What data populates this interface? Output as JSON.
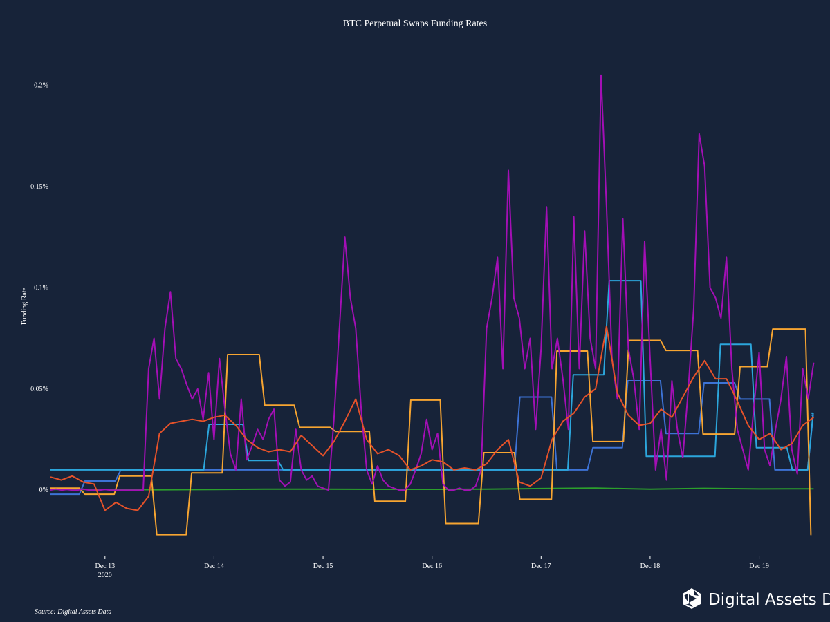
{
  "chart_data": {
    "type": "line",
    "title": "BTC Perpetual Swaps Funding Rates",
    "xlabel": "",
    "ylabel": "Funding Rate",
    "source": "Source: Digital Assets Data",
    "logo_text": "Digital Assets Data",
    "x_unit": "day of December 2020",
    "xlim": [
      12.5,
      19.65
    ],
    "ylim": [
      -0.031,
      0.208
    ],
    "grid": false,
    "legend": "none",
    "x_ticks": [
      {
        "value": 13,
        "label": "Dec 13",
        "sublabel": "2020"
      },
      {
        "value": 14,
        "label": "Dec 14"
      },
      {
        "value": 15,
        "label": "Dec 15"
      },
      {
        "value": 16,
        "label": "Dec 16"
      },
      {
        "value": 17,
        "label": "Dec 17"
      },
      {
        "value": 18,
        "label": "Dec 18"
      },
      {
        "value": 19,
        "label": "Dec 19"
      }
    ],
    "y_ticks": [
      {
        "value": 0,
        "label": "0%"
      },
      {
        "value": 0.05,
        "label": "0.05%"
      },
      {
        "value": 0.1,
        "label": "0.1%"
      },
      {
        "value": 0.15,
        "label": "0.15%"
      },
      {
        "value": 0.2,
        "label": "0.2%"
      }
    ],
    "series": [
      {
        "name": "green-series",
        "color": "#2ca02c",
        "kind": "sampled",
        "x_start": 12.5,
        "x_step": 0.5,
        "values": [
          0.0003,
          0.0003,
          0.0002,
          0.0003,
          0.0005,
          0.0005,
          0.0004,
          0.0004,
          0.0005,
          0.0008,
          0.001,
          0.0005,
          0.0009,
          0.0006,
          0.0007
        ]
      },
      {
        "name": "blue-series",
        "color": "#3d73d6",
        "kind": "step",
        "x_end": 19.48,
        "steps": [
          [
            12.5,
            -0.002
          ],
          [
            12.79,
            0.0045
          ],
          [
            13.12,
            0.01
          ],
          [
            16.78,
            0.046
          ],
          [
            17.12,
            0.01
          ],
          [
            17.45,
            0.021
          ],
          [
            17.77,
            0.054
          ],
          [
            18.12,
            0.028
          ],
          [
            18.47,
            0.053
          ],
          [
            18.8,
            0.045
          ],
          [
            19.12,
            0.01
          ],
          [
            19.47,
            0.037
          ]
        ]
      },
      {
        "name": "sky-blue-series",
        "color": "#2ca6dc",
        "kind": "step",
        "x_end": 19.48,
        "steps": [
          [
            12.5,
            0.01
          ],
          [
            13.93,
            0.0325
          ],
          [
            14.29,
            0.0147
          ],
          [
            14.61,
            0.01
          ],
          [
            17.27,
            0.057
          ],
          [
            17.6,
            0.1035
          ],
          [
            17.94,
            0.0167
          ],
          [
            18.62,
            0.072
          ],
          [
            18.95,
            0.021
          ],
          [
            19.28,
            0.01
          ],
          [
            19.47,
            0.038
          ]
        ]
      },
      {
        "name": "orange-series",
        "color": "#f7a531",
        "kind": "step",
        "x_end": 19.48,
        "steps": [
          [
            12.5,
            0.001
          ],
          [
            12.79,
            -0.002
          ],
          [
            13.11,
            0.007
          ],
          [
            13.45,
            -0.022
          ],
          [
            13.77,
            0.0085
          ],
          [
            14.1,
            0.067
          ],
          [
            14.44,
            0.042
          ],
          [
            14.76,
            0.031
          ],
          [
            15.09,
            0.029
          ],
          [
            15.45,
            -0.0055
          ],
          [
            15.78,
            0.0445
          ],
          [
            16.1,
            -0.0165
          ],
          [
            16.45,
            0.0185
          ],
          [
            16.78,
            -0.0045
          ],
          [
            17.12,
            0.0687
          ],
          [
            17.45,
            0.024
          ],
          [
            17.78,
            0.074
          ],
          [
            18.12,
            0.069
          ],
          [
            18.46,
            0.0277
          ],
          [
            18.8,
            0.061
          ],
          [
            19.1,
            0.0796
          ],
          [
            19.45,
            -0.022
          ]
        ]
      },
      {
        "name": "purple-series",
        "color": "#a30fb5",
        "kind": "sampled",
        "x_start": 12.5,
        "x_step": 0.05,
        "values": [
          0,
          0.0005,
          0,
          0.0003,
          0,
          0,
          0.0005,
          0,
          0,
          0,
          0.0003,
          0,
          0,
          0,
          0,
          0,
          0,
          0,
          0.06,
          0.075,
          0.045,
          0.08,
          0.098,
          0.065,
          0.06,
          0.052,
          0.045,
          0.05,
          0.035,
          0.058,
          0.025,
          0.065,
          0.04,
          0.018,
          0.01,
          0.045,
          0.015,
          0.022,
          0.03,
          0.025,
          0.035,
          0.04,
          0.005,
          0.002,
          0.004,
          0.03,
          0.01,
          0.005,
          0.007,
          0.002,
          0.001,
          0,
          0.035,
          0.08,
          0.125,
          0.095,
          0.08,
          0.04,
          0.01,
          0.003,
          0.012,
          0.005,
          0.002,
          0.001,
          0,
          0,
          0.003,
          0.01,
          0.018,
          0.035,
          0.02,
          0.028,
          0.003,
          0,
          0,
          0.001,
          0,
          0,
          0.002,
          0.01,
          0.08,
          0.095,
          0.115,
          0.06,
          0.158,
          0.095,
          0.085,
          0.06,
          0.075,
          0.03,
          0.07,
          0.14,
          0.06,
          0.075,
          0.055,
          0.03,
          0.135,
          0.06,
          0.128,
          0.075,
          0.06,
          0.205,
          0.14,
          0.065,
          0.045,
          0.134,
          0.07,
          0.055,
          0.03,
          0.123,
          0.065,
          0.01,
          0.03,
          0.005,
          0.054,
          0.03,
          0.016,
          0.05,
          0.09,
          0.176,
          0.16,
          0.1,
          0.095,
          0.085,
          0.115,
          0.06,
          0.03,
          0.02,
          0.01,
          0.04,
          0.068,
          0.02,
          0.012,
          0.03,
          0.045,
          0.066,
          0.02,
          0.008,
          0.06,
          0.045,
          0.063
        ]
      },
      {
        "name": "red-orange-series",
        "color": "#e5522a",
        "kind": "sampled",
        "x_start": 12.5,
        "x_step": 0.1,
        "values": [
          0.0065,
          0.005,
          0.007,
          0.004,
          0.003,
          -0.01,
          -0.006,
          -0.009,
          -0.01,
          -0.003,
          0.028,
          0.033,
          0.034,
          0.035,
          0.034,
          0.036,
          0.037,
          0.032,
          0.025,
          0.021,
          0.019,
          0.02,
          0.019,
          0.027,
          0.022,
          0.017,
          0.024,
          0.034,
          0.045,
          0.025,
          0.018,
          0.02,
          0.017,
          0.01,
          0.012,
          0.015,
          0.014,
          0.01,
          0.011,
          0.01,
          0.013,
          0.02,
          0.025,
          0.004,
          0.002,
          0.006,
          0.025,
          0.034,
          0.038,
          0.046,
          0.05,
          0.081,
          0.048,
          0.037,
          0.032,
          0.033,
          0.04,
          0.036,
          0.046,
          0.056,
          0.064,
          0.055,
          0.055,
          0.044,
          0.032,
          0.025,
          0.028,
          0.02,
          0.023,
          0.032,
          0.036
        ]
      }
    ]
  }
}
